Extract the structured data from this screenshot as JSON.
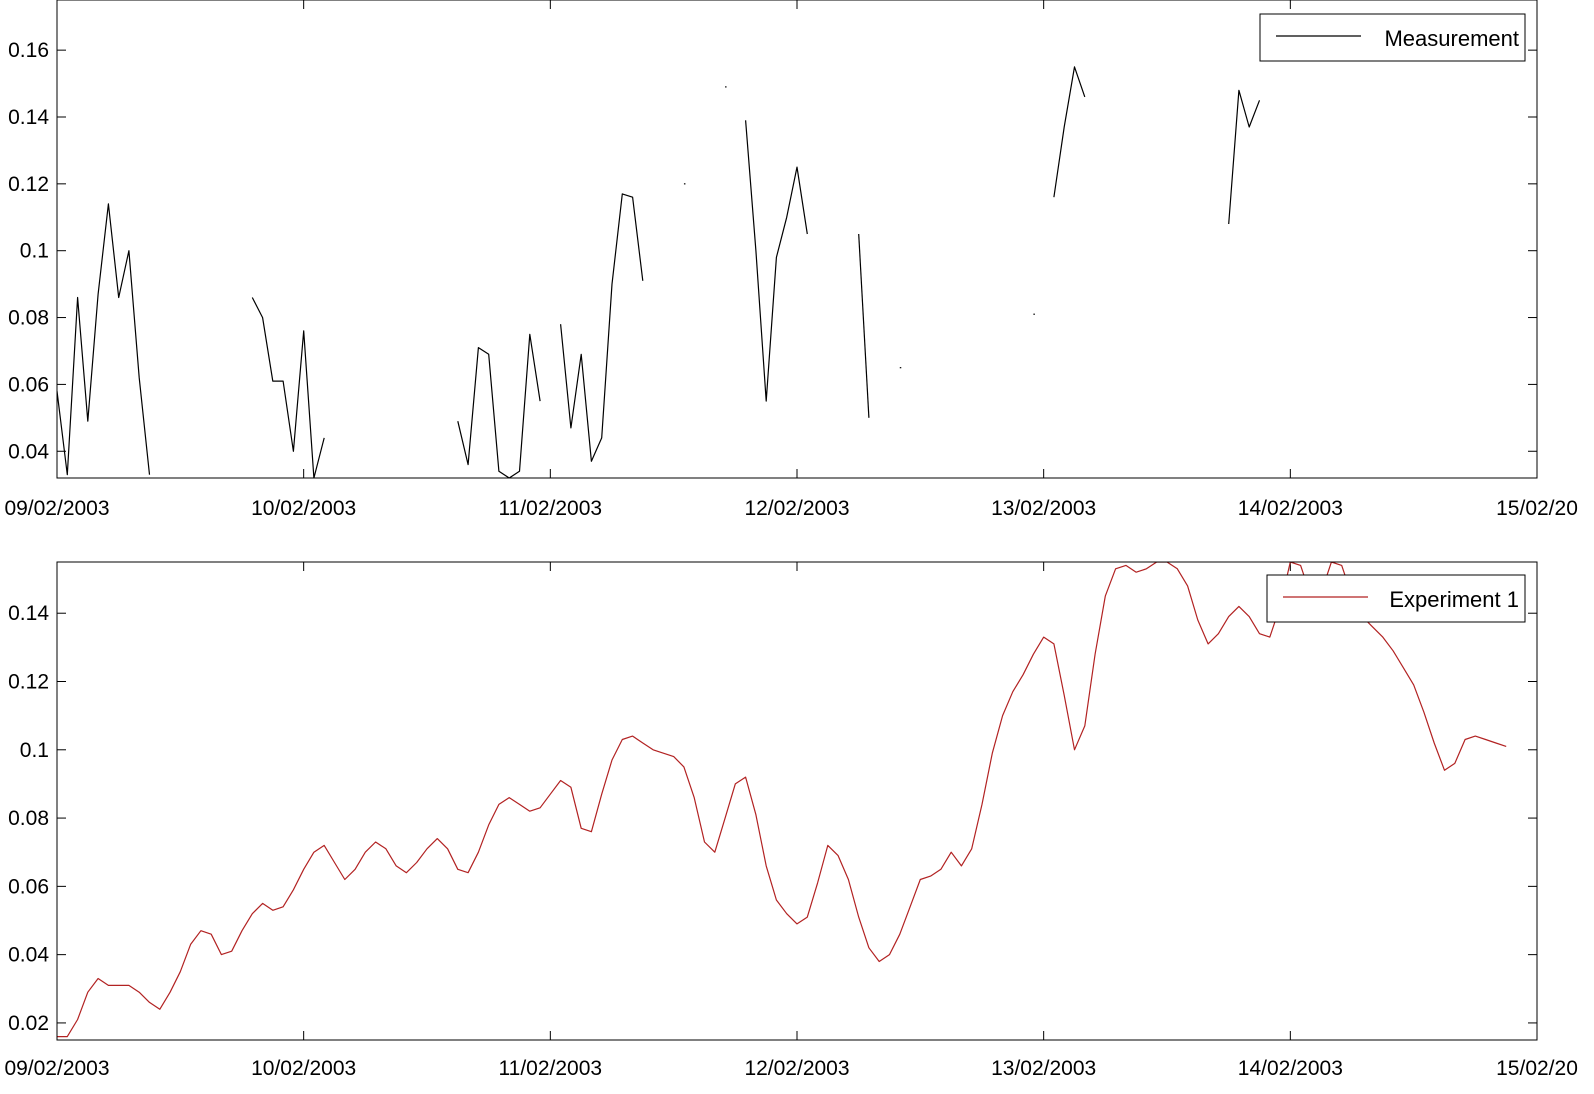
{
  "chart_data": [
    {
      "type": "line",
      "title": "",
      "xlabel": "",
      "ylabel": "",
      "x_axis": "date",
      "xlim": [
        "2003-02-09T00:00",
        "2003-02-15T00:00"
      ],
      "ylim": [
        0.032,
        0.175
      ],
      "x_ticks": [
        "2003-02-09",
        "2003-02-10",
        "2003-02-11",
        "2003-02-12",
        "2003-02-13",
        "2003-02-14",
        "2003-02-15"
      ],
      "x_tick_labels": [
        "09/02/2003",
        "10/02/2003",
        "11/02/2003",
        "12/02/2003",
        "13/02/2003",
        "14/02/2003",
        "15/02/20"
      ],
      "y_ticks": [
        0.04,
        0.06,
        0.08,
        0.1,
        0.12,
        0.14,
        0.16
      ],
      "y_tick_labels": [
        "0.04",
        "0.06",
        "0.08",
        "0.1",
        "0.12",
        "0.14",
        "0.16"
      ],
      "grid": false,
      "legend": "top-right",
      "series": [
        {
          "name": "Measurement",
          "color": "#000000",
          "segments": [
            [
              [
                "2003-02-09T00:00",
                0.058
              ],
              [
                "2003-02-09T01:00",
                0.033
              ],
              [
                "2003-02-09T02:00",
                0.086
              ],
              [
                "2003-02-09T03:00",
                0.049
              ],
              [
                "2003-02-09T04:00",
                0.087
              ],
              [
                "2003-02-09T05:00",
                0.114
              ],
              [
                "2003-02-09T06:00",
                0.086
              ],
              [
                "2003-02-09T07:00",
                0.1
              ],
              [
                "2003-02-09T08:00",
                0.062
              ],
              [
                "2003-02-09T09:00",
                0.033
              ]
            ],
            [
              [
                "2003-02-09T19:00",
                0.086
              ],
              [
                "2003-02-09T20:00",
                0.08
              ],
              [
                "2003-02-09T21:00",
                0.061
              ],
              [
                "2003-02-09T22:00",
                0.061
              ],
              [
                "2003-02-09T23:00",
                0.04
              ],
              [
                "2003-02-10T00:00",
                0.076
              ],
              [
                "2003-02-10T01:00",
                0.032
              ],
              [
                "2003-02-10T02:00",
                0.044
              ]
            ],
            [
              [
                "2003-02-10T15:00",
                0.049
              ],
              [
                "2003-02-10T16:00",
                0.036
              ],
              [
                "2003-02-10T17:00",
                0.071
              ],
              [
                "2003-02-10T18:00",
                0.069
              ],
              [
                "2003-02-10T19:00",
                0.034
              ],
              [
                "2003-02-10T20:00",
                0.032
              ],
              [
                "2003-02-10T21:00",
                0.034
              ],
              [
                "2003-02-10T22:00",
                0.075
              ],
              [
                "2003-02-10T23:00",
                0.055
              ]
            ],
            [
              [
                "2003-02-11T01:00",
                0.078
              ],
              [
                "2003-02-11T02:00",
                0.047
              ],
              [
                "2003-02-11T03:00",
                0.069
              ],
              [
                "2003-02-11T04:00",
                0.037
              ],
              [
                "2003-02-11T05:00",
                0.044
              ],
              [
                "2003-02-11T06:00",
                0.09
              ],
              [
                "2003-02-11T07:00",
                0.117
              ],
              [
                "2003-02-11T08:00",
                0.116
              ],
              [
                "2003-02-11T09:00",
                0.091
              ]
            ],
            [
              [
                "2003-02-11T13:00",
                0.12
              ]
            ],
            [
              [
                "2003-02-11T17:00",
                0.149
              ]
            ],
            [
              [
                "2003-02-11T19:00",
                0.139
              ],
              [
                "2003-02-11T20:00",
                0.1
              ],
              [
                "2003-02-11T21:00",
                0.055
              ],
              [
                "2003-02-11T22:00",
                0.098
              ],
              [
                "2003-02-11T23:00",
                0.11
              ],
              [
                "2003-02-12T00:00",
                0.125
              ],
              [
                "2003-02-12T01:00",
                0.105
              ]
            ],
            [
              [
                "2003-02-12T06:00",
                0.105
              ],
              [
                "2003-02-12T07:00",
                0.05
              ]
            ],
            [
              [
                "2003-02-12T10:00",
                0.065
              ]
            ],
            [
              [
                "2003-02-12T23:00",
                0.081
              ]
            ],
            [
              [
                "2003-02-13T01:00",
                0.116
              ],
              [
                "2003-02-13T02:00",
                0.137
              ],
              [
                "2003-02-13T03:00",
                0.155
              ],
              [
                "2003-02-13T04:00",
                0.146
              ]
            ],
            [
              [
                "2003-02-13T18:00",
                0.108
              ],
              [
                "2003-02-13T19:00",
                0.148
              ],
              [
                "2003-02-13T20:00",
                0.137
              ],
              [
                "2003-02-13T21:00",
                0.145
              ]
            ]
          ]
        }
      ]
    },
    {
      "type": "line",
      "title": "",
      "xlabel": "",
      "ylabel": "",
      "x_axis": "date",
      "xlim": [
        "2003-02-09T00:00",
        "2003-02-15T00:00"
      ],
      "ylim": [
        0.015,
        0.155
      ],
      "x_ticks": [
        "2003-02-09",
        "2003-02-10",
        "2003-02-11",
        "2003-02-12",
        "2003-02-13",
        "2003-02-14",
        "2003-02-15"
      ],
      "x_tick_labels": [
        "09/02/2003",
        "10/02/2003",
        "11/02/2003",
        "12/02/2003",
        "13/02/2003",
        "14/02/2003",
        "15/02/20"
      ],
      "y_ticks": [
        0.02,
        0.04,
        0.06,
        0.08,
        0.1,
        0.12,
        0.14
      ],
      "y_tick_labels": [
        "0.02",
        "0.04",
        "0.06",
        "0.08",
        "0.1",
        "0.12",
        "0.14"
      ],
      "grid": false,
      "legend": "top-right",
      "series": [
        {
          "name": "Experiment 1",
          "color": "#b22222",
          "x_start": "2003-02-09T00:00",
          "x_step_hours": 1,
          "values": [
            0.016,
            0.016,
            0.021,
            0.029,
            0.033,
            0.031,
            0.031,
            0.031,
            0.029,
            0.026,
            0.024,
            0.029,
            0.035,
            0.043,
            0.047,
            0.046,
            0.04,
            0.041,
            0.047,
            0.052,
            0.055,
            0.053,
            0.054,
            0.059,
            0.065,
            0.07,
            0.072,
            0.067,
            0.062,
            0.065,
            0.07,
            0.073,
            0.071,
            0.066,
            0.064,
            0.067,
            0.071,
            0.074,
            0.071,
            0.065,
            0.064,
            0.07,
            0.078,
            0.084,
            0.086,
            0.084,
            0.082,
            0.083,
            0.087,
            0.091,
            0.089,
            0.077,
            0.076,
            0.087,
            0.097,
            0.103,
            0.104,
            0.102,
            0.1,
            0.099,
            0.098,
            0.095,
            0.086,
            0.073,
            0.07,
            0.08,
            0.09,
            0.092,
            0.081,
            0.066,
            0.056,
            0.052,
            0.049,
            0.051,
            0.061,
            0.072,
            0.069,
            0.062,
            0.051,
            0.042,
            0.038,
            0.04,
            0.046,
            0.054,
            0.062,
            0.063,
            0.065,
            0.07,
            0.066,
            0.071,
            0.084,
            0.099,
            0.11,
            0.117,
            0.122,
            0.128,
            0.133,
            0.131,
            0.116,
            0.1,
            0.107,
            0.128,
            0.145,
            0.153,
            0.154,
            0.152,
            0.153,
            0.155,
            0.155,
            0.153,
            0.148,
            0.138,
            0.131,
            0.134,
            0.139,
            0.142,
            0.139,
            0.134,
            0.133,
            0.142,
            0.155,
            0.154,
            0.145,
            0.146,
            0.155,
            0.154,
            0.145,
            0.139,
            0.136,
            0.133,
            0.129,
            0.124,
            0.119,
            0.111,
            0.102,
            0.094,
            0.096,
            0.103,
            0.104,
            0.103,
            0.102,
            0.101
          ]
        }
      ]
    }
  ]
}
